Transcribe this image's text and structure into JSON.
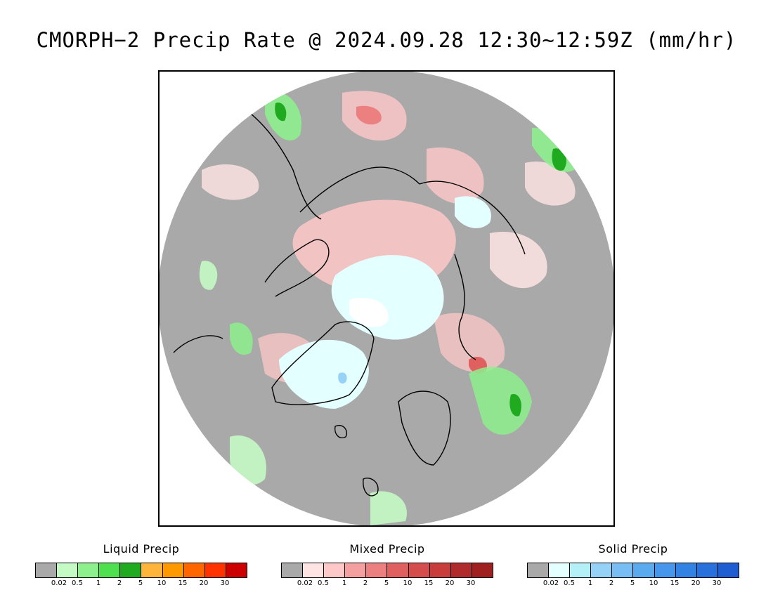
{
  "title": "CMORPH−2 Precip Rate @ 2024.09.28 12:30∼12:59Z (mm/hr)",
  "map": {
    "projection": "north-polar-stereographic",
    "background_color": "#a9a9a9",
    "coastline_color": "#000000"
  },
  "legends": [
    {
      "title": "Liquid Precip",
      "ticks": [
        "0.02",
        "0.5",
        "1",
        "2",
        "5",
        "10",
        "15",
        "20",
        "30"
      ],
      "colors": [
        "#a9a9a9",
        "#c4fac4",
        "#8df08d",
        "#4fe04f",
        "#1faa1f",
        "#ffb43c",
        "#ff9900",
        "#ff6600",
        "#ff3300",
        "#cc0000"
      ]
    },
    {
      "title": "Mixed Precip",
      "ticks": [
        "0.02",
        "0.5",
        "1",
        "2",
        "5",
        "10",
        "15",
        "20",
        "30"
      ],
      "colors": [
        "#a9a9a9",
        "#ffe4e4",
        "#ffc8c8",
        "#f4a0a0",
        "#ec8080",
        "#e06060",
        "#d44c4c",
        "#c83c3c",
        "#b02c2c",
        "#a02020"
      ]
    },
    {
      "title": "Solid Precip",
      "ticks": [
        "0.02",
        "0.5",
        "1",
        "2",
        "5",
        "10",
        "15",
        "20",
        "30"
      ],
      "colors": [
        "#a9a9a9",
        "#e4ffff",
        "#b4f0f8",
        "#96d2f8",
        "#78bef4",
        "#5aaaf0",
        "#4696ec",
        "#3282e4",
        "#2870dc",
        "#1e5ed2"
      ]
    }
  ]
}
